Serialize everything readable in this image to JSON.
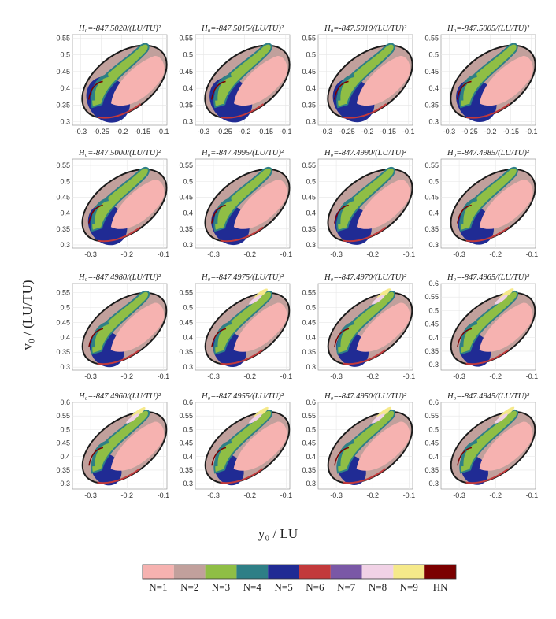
{
  "chart_data": {
    "type": "heatmap",
    "xlabel": "y₀ / LU",
    "ylabel": "v₀ / (LU/TU)",
    "panels": [
      {
        "title": "H₀=-847.5020/(LU/TU)²",
        "xticks": [
          "-0.3",
          "-0.25",
          "-0.2",
          "-0.15",
          "-0.1"
        ],
        "yticks": [
          "0.3",
          "0.35",
          "0.4",
          "0.45",
          "0.5",
          "0.55"
        ],
        "xlim": [
          -0.32,
          -0.09
        ],
        "ylim": [
          0.29,
          0.56
        ]
      },
      {
        "title": "H₀=-847.5015/(LU/TU)²",
        "xticks": [
          "-0.3",
          "-0.25",
          "-0.2",
          "-0.15",
          "-0.1"
        ],
        "yticks": [
          "0.3",
          "0.35",
          "0.4",
          "0.45",
          "0.5",
          "0.55"
        ],
        "xlim": [
          -0.32,
          -0.09
        ],
        "ylim": [
          0.29,
          0.56
        ]
      },
      {
        "title": "H₀=-847.5010/(LU/TU)²",
        "xticks": [
          "-0.3",
          "-0.25",
          "-0.2",
          "-0.15",
          "-0.1"
        ],
        "yticks": [
          "0.3",
          "0.35",
          "0.4",
          "0.45",
          "0.5",
          "0.55"
        ],
        "xlim": [
          -0.32,
          -0.09
        ],
        "ylim": [
          0.29,
          0.56
        ]
      },
      {
        "title": "H₀=-847.5005/(LU/TU)²",
        "xticks": [
          "-0.3",
          "-0.25",
          "-0.2",
          "-0.15",
          "-0.1"
        ],
        "yticks": [
          "0.3",
          "0.35",
          "0.4",
          "0.45",
          "0.5",
          "0.55"
        ],
        "xlim": [
          -0.32,
          -0.09
        ],
        "ylim": [
          0.29,
          0.56
        ]
      },
      {
        "title": "H₀=-847.5000/(LU/TU)²",
        "xticks": [
          "-0.3",
          "-0.2",
          "-0.1"
        ],
        "yticks": [
          "0.3",
          "0.35",
          "0.4",
          "0.45",
          "0.5",
          "0.55"
        ],
        "xlim": [
          -0.35,
          -0.09
        ],
        "ylim": [
          0.29,
          0.57
        ]
      },
      {
        "title": "H₀=-847.4995/(LU/TU)²",
        "xticks": [
          "-0.3",
          "-0.2",
          "-0.1"
        ],
        "yticks": [
          "0.3",
          "0.35",
          "0.4",
          "0.45",
          "0.5",
          "0.55"
        ],
        "xlim": [
          -0.35,
          -0.09
        ],
        "ylim": [
          0.29,
          0.57
        ]
      },
      {
        "title": "H₀=-847.4990/(LU/TU)²",
        "xticks": [
          "-0.3",
          "-0.2",
          "-0.1"
        ],
        "yticks": [
          "0.3",
          "0.35",
          "0.4",
          "0.45",
          "0.5",
          "0.55"
        ],
        "xlim": [
          -0.35,
          -0.09
        ],
        "ylim": [
          0.29,
          0.57
        ]
      },
      {
        "title": "H₀=-847.4985/(LU/TU)²",
        "xticks": [
          "-0.3",
          "-0.2",
          "-0.1"
        ],
        "yticks": [
          "0.3",
          "0.35",
          "0.4",
          "0.45",
          "0.5",
          "0.55"
        ],
        "xlim": [
          -0.35,
          -0.09
        ],
        "ylim": [
          0.29,
          0.57
        ]
      },
      {
        "title": "H₀=-847.4980/(LU/TU)²",
        "xticks": [
          "-0.3",
          "-0.2",
          "-0.1"
        ],
        "yticks": [
          "0.3",
          "0.35",
          "0.4",
          "0.45",
          "0.5",
          "0.55"
        ],
        "xlim": [
          -0.35,
          -0.09
        ],
        "ylim": [
          0.29,
          0.58
        ]
      },
      {
        "title": "H₀=-847.4975/(LU/TU)²",
        "xticks": [
          "-0.3",
          "-0.2",
          "-0.1"
        ],
        "yticks": [
          "0.3",
          "0.35",
          "0.4",
          "0.45",
          "0.5",
          "0.55"
        ],
        "xlim": [
          -0.35,
          -0.09
        ],
        "ylim": [
          0.29,
          0.58
        ]
      },
      {
        "title": "H₀=-847.4970/(LU/TU)²",
        "xticks": [
          "-0.3",
          "-0.2",
          "-0.1"
        ],
        "yticks": [
          "0.3",
          "0.35",
          "0.4",
          "0.45",
          "0.5",
          "0.55"
        ],
        "xlim": [
          -0.35,
          -0.09
        ],
        "ylim": [
          0.29,
          0.58
        ]
      },
      {
        "title": "H₀=-847.4965/(LU/TU)²",
        "xticks": [
          "-0.3",
          "-0.2",
          "-0.1"
        ],
        "yticks": [
          "0.3",
          "0.35",
          "0.4",
          "0.45",
          "0.5",
          "0.55",
          "0.6"
        ],
        "xlim": [
          -0.35,
          -0.09
        ],
        "ylim": [
          0.28,
          0.6
        ]
      },
      {
        "title": "H₀=-847.4960/(LU/TU)²",
        "xticks": [
          "-0.3",
          "-0.2",
          "-0.1"
        ],
        "yticks": [
          "0.3",
          "0.35",
          "0.4",
          "0.45",
          "0.5",
          "0.55",
          "0.6"
        ],
        "xlim": [
          -0.35,
          -0.09
        ],
        "ylim": [
          0.28,
          0.6
        ]
      },
      {
        "title": "H₀=-847.4955/(LU/TU)²",
        "xticks": [
          "-0.3",
          "-0.2",
          "-0.1"
        ],
        "yticks": [
          "0.3",
          "0.35",
          "0.4",
          "0.45",
          "0.5",
          "0.55",
          "0.6"
        ],
        "xlim": [
          -0.35,
          -0.09
        ],
        "ylim": [
          0.28,
          0.6
        ]
      },
      {
        "title": "H₀=-847.4950/(LU/TU)²",
        "xticks": [
          "-0.3",
          "-0.2",
          "-0.1"
        ],
        "yticks": [
          "0.3",
          "0.35",
          "0.4",
          "0.45",
          "0.5",
          "0.55",
          "0.6"
        ],
        "xlim": [
          -0.35,
          -0.09
        ],
        "ylim": [
          0.28,
          0.6
        ]
      },
      {
        "title": "H₀=-847.4945/(LU/TU)²",
        "xticks": [
          "-0.3",
          "-0.2",
          "-0.1"
        ],
        "yticks": [
          "0.3",
          "0.35",
          "0.4",
          "0.45",
          "0.5",
          "0.55",
          "0.6"
        ],
        "xlim": [
          -0.35,
          -0.09
        ],
        "ylim": [
          0.28,
          0.6
        ]
      }
    ],
    "legend": {
      "placement": "bottom",
      "entries": [
        {
          "label": "N=1",
          "color": "#f6b2b0"
        },
        {
          "label": "N=2",
          "color": "#c1a09c"
        },
        {
          "label": "N=3",
          "color": "#8fbe45"
        },
        {
          "label": "N=4",
          "color": "#2e7f86"
        },
        {
          "label": "N=5",
          "color": "#202b94"
        },
        {
          "label": "N=6",
          "color": "#c2393b"
        },
        {
          "label": "N=7",
          "color": "#7a58a6"
        },
        {
          "label": "N=8",
          "color": "#f1d2e6"
        },
        {
          "label": "N=9",
          "color": "#f5e98a"
        },
        {
          "label": "HN",
          "color": "#7b0000"
        }
      ]
    },
    "grid": true
  }
}
